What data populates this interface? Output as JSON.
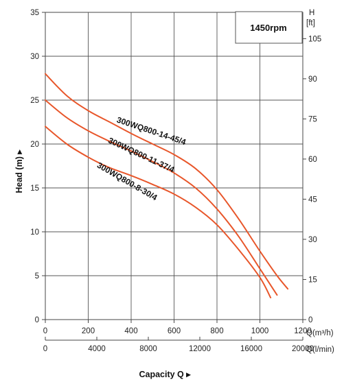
{
  "chart_data": {
    "type": "line",
    "title": "",
    "badge": "1450rpm",
    "xlabel": "Capacity Q",
    "ylabel": "Head (m)",
    "xlim": [
      0,
      1200
    ],
    "ylim": [
      0,
      35
    ],
    "x_ticks": [
      "0",
      "200",
      "400",
      "600",
      "800",
      "1000",
      "1200"
    ],
    "x_unit": "Q(m³/h)",
    "x2_ticks": [
      "0",
      "4000",
      "8000",
      "12000",
      "16000",
      "20000"
    ],
    "x2_unit": "Q(l/min)",
    "y_ticks": [
      "0",
      "5",
      "10",
      "15",
      "20",
      "25",
      "30",
      "35"
    ],
    "y2_label": "H",
    "y2_unit": "[ft]",
    "y2_ticks": [
      "0",
      "15",
      "30",
      "45",
      "60",
      "75",
      "90",
      "105"
    ],
    "grid": true,
    "series_color": "#e8562a",
    "series": [
      {
        "name": "300WQ800-14-45/4",
        "x": [
          0,
          100,
          200,
          300,
          400,
          500,
          600,
          700,
          800,
          900,
          1000,
          1080,
          1130
        ],
        "y": [
          28,
          25.5,
          23.8,
          22.5,
          21.2,
          20.0,
          18.8,
          17.2,
          14.8,
          11.5,
          7.8,
          5.0,
          3.5
        ]
      },
      {
        "name": "300WQ800-11-37/4",
        "x": [
          0,
          100,
          200,
          300,
          400,
          500,
          600,
          700,
          800,
          900,
          1000,
          1080
        ],
        "y": [
          25,
          23.0,
          21.5,
          20.3,
          19.2,
          18.0,
          16.7,
          15.0,
          12.6,
          9.5,
          5.8,
          2.8
        ]
      },
      {
        "name": "300WQ800-8-30/4",
        "x": [
          0,
          100,
          200,
          300,
          400,
          500,
          600,
          700,
          800,
          900,
          1000,
          1050
        ],
        "y": [
          22,
          20.0,
          18.5,
          17.3,
          16.4,
          15.4,
          14.3,
          12.8,
          10.8,
          8.0,
          4.8,
          2.5
        ]
      }
    ]
  }
}
